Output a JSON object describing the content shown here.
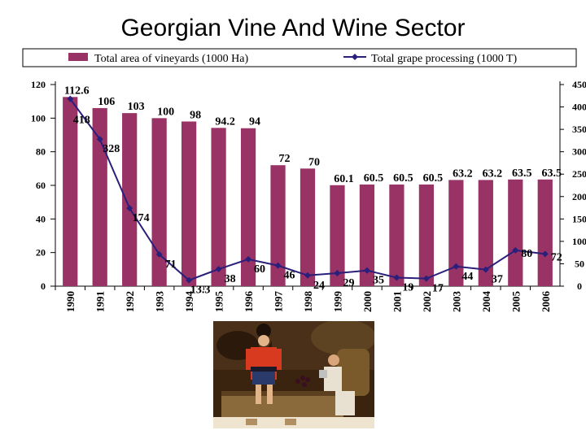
{
  "title": "Georgian Vine And Wine Sector",
  "chart_data": {
    "type": "bar",
    "categories": [
      "1990",
      "1991",
      "1992",
      "1993",
      "1994",
      "1995",
      "1996",
      "1997",
      "1998",
      "1999",
      "2000",
      "2001",
      "2002",
      "2003",
      "2004",
      "2005",
      "2006"
    ],
    "series": [
      {
        "name": "Total area of vineyards (1000 Ha)",
        "type": "bar",
        "axis": "left",
        "color": "#993366",
        "values": [
          112.6,
          106,
          103,
          100,
          98,
          94.2,
          94,
          72,
          70,
          60.1,
          60.5,
          60.5,
          60.5,
          63.2,
          63.2,
          63.5,
          63.5
        ],
        "labels": [
          "112.6",
          "106",
          "103",
          "100",
          "98",
          "94.2",
          "94",
          "72",
          "70",
          "60.1",
          "60.5",
          "60.5",
          "60.5",
          "63.2",
          "63.2",
          "63.5",
          "63.5"
        ]
      },
      {
        "name": "Total grape processing (1000 T)",
        "type": "line",
        "axis": "right",
        "color": "#2a1f7a",
        "values": [
          418,
          328,
          174,
          71,
          13.3,
          38,
          60,
          46,
          24,
          29,
          35,
          19,
          17,
          44,
          37,
          80,
          72
        ],
        "labels": [
          "418",
          "328",
          "174",
          "71",
          "13.3",
          "38",
          "60",
          "46",
          "24",
          "29",
          "35",
          "19",
          "17",
          "44",
          "37",
          "80",
          "72"
        ]
      }
    ],
    "ylim_left": [
      0,
      120
    ],
    "yticks_left": [
      "0",
      "20",
      "40",
      "60",
      "80",
      "100",
      "120"
    ],
    "ylim_right": [
      0,
      450
    ],
    "yticks_right": [
      "0",
      "50",
      "100",
      "150",
      "200",
      "250",
      "300",
      "350",
      "400",
      "450"
    ],
    "legend": "top",
    "grid": false
  },
  "painting": {
    "subject": "men-treading-grapes-illustration"
  }
}
